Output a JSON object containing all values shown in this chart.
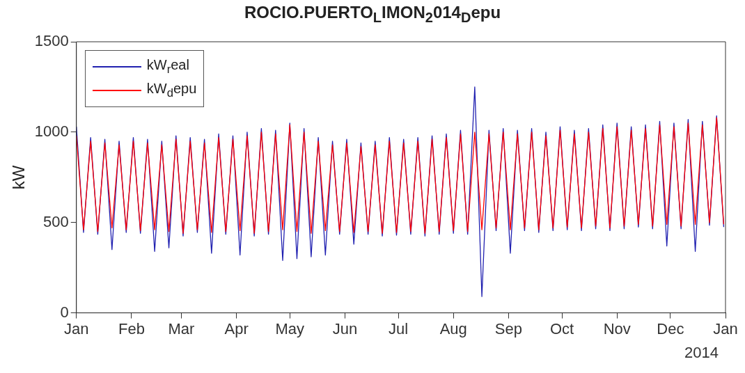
{
  "chart_data": {
    "type": "line",
    "title": "ROCIO.PUERTO$_{L}$IMON$_{2}$014$_{D}$epu",
    "ylabel": "kW",
    "annotations": [
      "2014"
    ],
    "x": [
      "2014-01-01",
      "2014-01-05",
      "2014-01-09",
      "2014-01-13",
      "2014-01-17",
      "2014-01-21",
      "2014-01-25",
      "2014-01-29",
      "2014-02-02",
      "2014-02-06",
      "2014-02-10",
      "2014-02-14",
      "2014-02-18",
      "2014-02-22",
      "2014-02-26",
      "2014-03-02",
      "2014-03-06",
      "2014-03-10",
      "2014-03-14",
      "2014-03-18",
      "2014-03-22",
      "2014-03-26",
      "2014-03-30",
      "2014-04-03",
      "2014-04-07",
      "2014-04-11",
      "2014-04-15",
      "2014-04-19",
      "2014-04-23",
      "2014-04-27",
      "2014-05-01",
      "2014-05-05",
      "2014-05-09",
      "2014-05-13",
      "2014-05-17",
      "2014-05-21",
      "2014-05-25",
      "2014-05-29",
      "2014-06-02",
      "2014-06-06",
      "2014-06-10",
      "2014-06-14",
      "2014-06-18",
      "2014-06-22",
      "2014-06-26",
      "2014-06-30",
      "2014-07-04",
      "2014-07-08",
      "2014-07-12",
      "2014-07-16",
      "2014-07-20",
      "2014-07-24",
      "2014-07-28",
      "2014-08-01",
      "2014-08-05",
      "2014-08-09",
      "2014-08-13",
      "2014-08-17",
      "2014-08-21",
      "2014-08-25",
      "2014-08-29",
      "2014-09-02",
      "2014-09-06",
      "2014-09-10",
      "2014-09-14",
      "2014-09-18",
      "2014-09-22",
      "2014-09-26",
      "2014-09-30",
      "2014-10-04",
      "2014-10-08",
      "2014-10-12",
      "2014-10-16",
      "2014-10-20",
      "2014-10-24",
      "2014-10-28",
      "2014-11-01",
      "2014-11-05",
      "2014-11-09",
      "2014-11-13",
      "2014-11-17",
      "2014-11-21",
      "2014-11-25",
      "2014-11-29",
      "2014-12-03",
      "2014-12-07",
      "2014-12-11",
      "2014-12-15",
      "2014-12-19",
      "2014-12-23",
      "2014-12-27",
      "2014-12-31"
    ],
    "series": [
      {
        "name": "kW$_{r}$eal",
        "color": "#2020b0",
        "values": [
          1030,
          445,
          970,
          435,
          960,
          350,
          950,
          445,
          970,
          440,
          960,
          340,
          950,
          360,
          980,
          425,
          970,
          445,
          960,
          330,
          990,
          435,
          980,
          320,
          1000,
          425,
          1020,
          435,
          1010,
          290,
          1050,
          300,
          1020,
          310,
          970,
          320,
          950,
          435,
          960,
          380,
          940,
          435,
          950,
          425,
          970,
          430,
          960,
          435,
          970,
          425,
          980,
          435,
          990,
          440,
          1010,
          435,
          1250,
          90,
          1010,
          455,
          1020,
          330,
          1010,
          455,
          1020,
          445,
          1000,
          455,
          1030,
          460,
          1010,
          455,
          1020,
          465,
          1040,
          455,
          1050,
          465,
          1030,
          475,
          1040,
          465,
          1060,
          370,
          1050,
          465,
          1070,
          340,
          1060,
          485,
          1090,
          475
        ]
      },
      {
        "name": "kW$_{d}$epu",
        "color": "#ff0000",
        "values": [
          980,
          460,
          950,
          450,
          940,
          470,
          930,
          460,
          950,
          455,
          940,
          460,
          930,
          450,
          960,
          440,
          950,
          460,
          940,
          445,
          970,
          450,
          960,
          455,
          980,
          440,
          1000,
          450,
          990,
          460,
          1040,
          450,
          1000,
          440,
          950,
          455,
          930,
          450,
          940,
          445,
          920,
          450,
          930,
          440,
          950,
          445,
          940,
          450,
          950,
          440,
          960,
          450,
          970,
          455,
          990,
          450,
          1000,
          460,
          990,
          470,
          1000,
          460,
          990,
          470,
          1000,
          460,
          980,
          470,
          1010,
          475,
          990,
          470,
          1000,
          480,
          1020,
          470,
          1030,
          480,
          1010,
          490,
          1020,
          480,
          1040,
          490,
          1030,
          480,
          1050,
          490,
          1040,
          500,
          1080,
          490
        ]
      }
    ],
    "xlim": [
      "2014-01-01",
      "2015-01-01"
    ],
    "xticks": [
      {
        "value": "2014-01-01",
        "label": "Jan"
      },
      {
        "value": "2014-02-01",
        "label": "Feb"
      },
      {
        "value": "2014-03-01",
        "label": "Mar"
      },
      {
        "value": "2014-04-01",
        "label": "Apr"
      },
      {
        "value": "2014-05-01",
        "label": "May"
      },
      {
        "value": "2014-06-01",
        "label": "Jun"
      },
      {
        "value": "2014-07-01",
        "label": "Jul"
      },
      {
        "value": "2014-08-01",
        "label": "Aug"
      },
      {
        "value": "2014-09-01",
        "label": "Sep"
      },
      {
        "value": "2014-10-01",
        "label": "Oct"
      },
      {
        "value": "2014-11-01",
        "label": "Nov"
      },
      {
        "value": "2014-12-01",
        "label": "Dec"
      },
      {
        "value": "2015-01-01",
        "label": "Jan"
      }
    ],
    "ylim": [
      0,
      1500
    ],
    "yticks": [
      0,
      500,
      1000,
      1500
    ],
    "legend": "top left",
    "marker": "none",
    "line_style": "solid"
  }
}
